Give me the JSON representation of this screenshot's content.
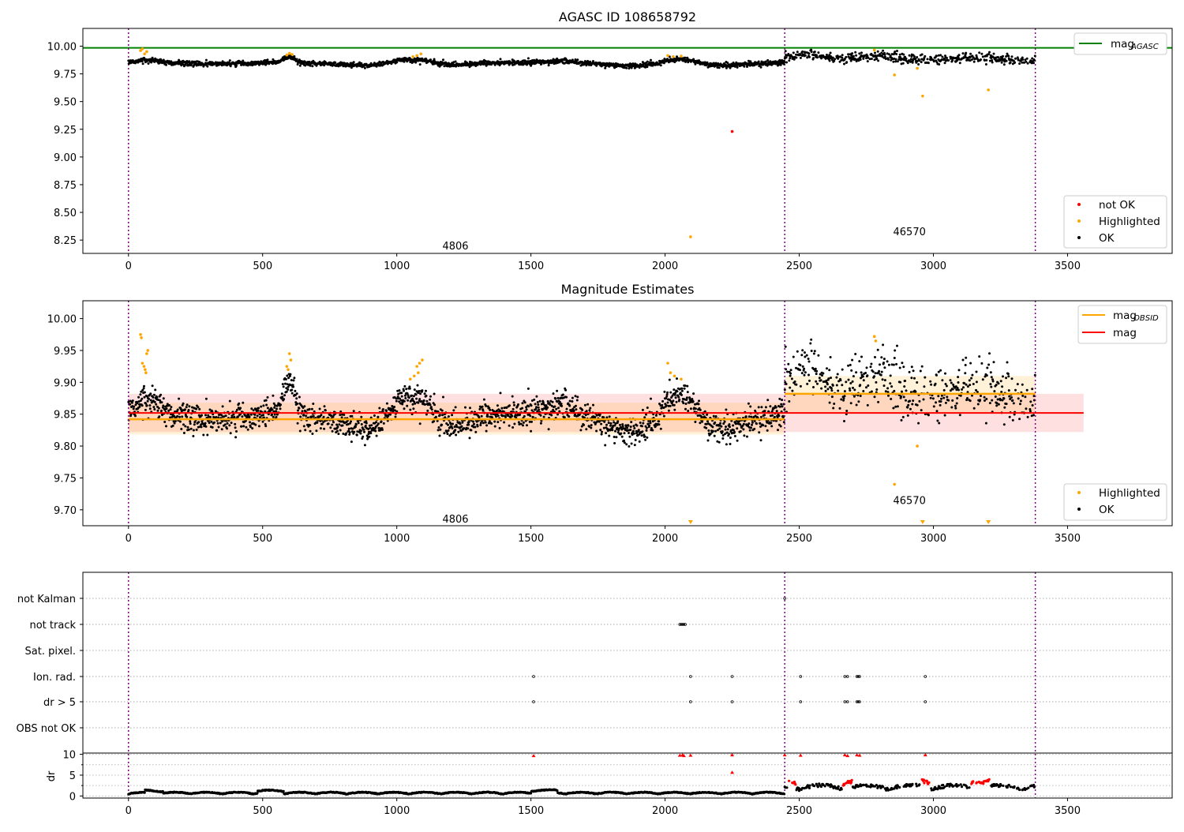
{
  "chart_data": [
    {
      "type": "scatter",
      "title": "AGASC ID 108658792",
      "xlim": [
        -170,
        3890
      ],
      "ylim": [
        8.13,
        10.16
      ],
      "xticks": [
        0,
        500,
        1000,
        1500,
        2000,
        2500,
        3000,
        3500
      ],
      "yticks": [
        8.25,
        8.5,
        8.75,
        9.0,
        9.25,
        9.5,
        9.75,
        10.0
      ],
      "ytick_labels": [
        "8.25",
        "8.50",
        "8.75",
        "9.00",
        "9.25",
        "9.50",
        "9.75",
        "10.00"
      ],
      "vlines": [
        0,
        2446,
        3380
      ],
      "hline": {
        "name": "mag_AGASC",
        "y": 9.985,
        "color": "#008000"
      },
      "annotations": [
        {
          "text": "4806",
          "x": 1170,
          "y": 8.2
        },
        {
          "text": "46570",
          "x": 2850,
          "y": 8.33
        }
      ],
      "segments": [
        {
          "x0": 0,
          "x1": 2446,
          "mean": 9.842
        },
        {
          "x0": 2446,
          "x1": 3380,
          "mean": 9.882
        }
      ],
      "highlighted_points": [
        {
          "x": 45,
          "y": 9.96
        },
        {
          "x": 52,
          "y": 9.975
        },
        {
          "x": 60,
          "y": 9.93
        },
        {
          "x": 68,
          "y": 9.95
        },
        {
          "x": 590,
          "y": 9.92
        },
        {
          "x": 600,
          "y": 9.935
        },
        {
          "x": 610,
          "y": 9.925
        },
        {
          "x": 1060,
          "y": 9.905
        },
        {
          "x": 1075,
          "y": 9.915
        },
        {
          "x": 1090,
          "y": 9.93
        },
        {
          "x": 2010,
          "y": 9.915
        },
        {
          "x": 2030,
          "y": 9.905
        },
        {
          "x": 2060,
          "y": 9.91
        },
        {
          "x": 2095,
          "y": 8.28
        },
        {
          "x": 2780,
          "y": 9.965
        },
        {
          "x": 2855,
          "y": 9.74
        },
        {
          "x": 2940,
          "y": 9.8
        },
        {
          "x": 2960,
          "y": 9.55
        },
        {
          "x": 3205,
          "y": 9.605
        }
      ],
      "not_ok_points": [
        {
          "x": 2250,
          "y": 9.23
        }
      ],
      "legends": [
        {
          "items": [
            {
              "label": "mag",
              "sub": "AGASC",
              "color": "#008000",
              "kind": "line"
            }
          ],
          "placement": "upper-right"
        },
        {
          "items": [
            {
              "label": "not OK",
              "color": "#ff0000",
              "kind": "dot"
            },
            {
              "label": "Highlighted",
              "color": "#ffa500",
              "kind": "dot"
            },
            {
              "label": "OK",
              "color": "#000000",
              "kind": "dot"
            }
          ],
          "placement": "lower-right"
        }
      ]
    },
    {
      "type": "scatter",
      "title": "Magnitude Estimates",
      "xlim": [
        -170,
        3890
      ],
      "ylim": [
        9.675,
        10.028
      ],
      "xticks": [
        0,
        500,
        1000,
        1500,
        2000,
        2500,
        3000,
        3500
      ],
      "yticks": [
        9.7,
        9.75,
        9.8,
        9.85,
        9.9,
        9.95,
        10.0
      ],
      "ytick_labels": [
        "9.70",
        "9.75",
        "9.80",
        "9.85",
        "9.90",
        "9.95",
        "10.00"
      ],
      "vlines": [
        0,
        2446,
        3380
      ],
      "mag_line": {
        "name": "mag",
        "y": 9.852,
        "band": [
          9.822,
          9.882
        ],
        "x0": 0,
        "x1": 3560,
        "color": "#ff0000"
      },
      "obsid_segments": [
        {
          "x0": 0,
          "x1": 2446,
          "y": 9.842,
          "band": [
            9.818,
            9.868
          ],
          "color": "#ffa500"
        },
        {
          "x0": 2446,
          "x1": 3380,
          "y": 9.882,
          "band": [
            9.853,
            9.91
          ],
          "color": "#ffa500"
        }
      ],
      "annotations": [
        {
          "text": "4806",
          "x": 1170,
          "y": 9.686
        },
        {
          "text": "46570",
          "x": 2850,
          "y": 9.715
        }
      ],
      "highlighted_points": [
        {
          "x": 45,
          "y": 9.975
        },
        {
          "x": 48,
          "y": 9.97
        },
        {
          "x": 52,
          "y": 9.93
        },
        {
          "x": 58,
          "y": 9.925
        },
        {
          "x": 62,
          "y": 9.92
        },
        {
          "x": 68,
          "y": 9.945
        },
        {
          "x": 72,
          "y": 9.95
        },
        {
          "x": 65,
          "y": 9.915
        },
        {
          "x": 590,
          "y": 9.925
        },
        {
          "x": 595,
          "y": 9.92
        },
        {
          "x": 600,
          "y": 9.945
        },
        {
          "x": 605,
          "y": 9.935
        },
        {
          "x": 1050,
          "y": 9.905
        },
        {
          "x": 1065,
          "y": 9.91
        },
        {
          "x": 1075,
          "y": 9.925
        },
        {
          "x": 1085,
          "y": 9.93
        },
        {
          "x": 1095,
          "y": 9.935
        },
        {
          "x": 1080,
          "y": 9.915
        },
        {
          "x": 2010,
          "y": 9.93
        },
        {
          "x": 2020,
          "y": 9.915
        },
        {
          "x": 2035,
          "y": 9.91
        },
        {
          "x": 2060,
          "y": 9.905
        },
        {
          "x": 2780,
          "y": 9.972
        },
        {
          "x": 2785,
          "y": 9.965
        },
        {
          "x": 2855,
          "y": 9.74
        },
        {
          "x": 2940,
          "y": 9.8
        }
      ],
      "offscale_markers": [
        {
          "x": 2095
        },
        {
          "x": 2960
        },
        {
          "x": 3205
        }
      ],
      "legends": [
        {
          "items": [
            {
              "label": "mag",
              "sub": "OBSID",
              "color": "#ffa500",
              "kind": "line"
            },
            {
              "label": "mag",
              "sub": "",
              "color": "#ff0000",
              "kind": "line"
            }
          ],
          "placement": "upper-right"
        },
        {
          "items": [
            {
              "label": "Highlighted",
              "color": "#ffa500",
              "kind": "dot"
            },
            {
              "label": "OK",
              "color": "#000000",
              "kind": "dot"
            }
          ],
          "placement": "lower-right"
        }
      ]
    },
    {
      "type": "scatter",
      "title": "",
      "xlim": [
        -170,
        3890
      ],
      "xticks": [
        0,
        500,
        1000,
        1500,
        2000,
        2500,
        3000,
        3500
      ],
      "vlines": [
        0,
        2446,
        3380
      ],
      "flag_rows": [
        "not Kalman",
        "not track",
        "Sat. pixel.",
        "Ion. rad.",
        "dr > 5",
        "OBS not OK"
      ],
      "flag_points": {
        "not Kalman": [
          2446
        ],
        "not track": [
          2055,
          2060,
          2065,
          2070,
          2075
        ],
        "Sat. pixel.": [],
        "Ion. rad.": [
          1510,
          2095,
          2250,
          2505,
          2670,
          2680,
          2715,
          2720,
          2725,
          2970
        ],
        "dr > 5": [
          1510,
          2095,
          2250,
          2505,
          2670,
          2680,
          2715,
          2720,
          2725,
          2970
        ],
        "OBS not OK": []
      },
      "dr_ylabel": "dr",
      "dr_ylim": [
        -0.5,
        10.3
      ],
      "dr_yticks": [
        0,
        5,
        10
      ],
      "dr_ytick_labels": [
        "0",
        "5",
        "10"
      ],
      "dr_highlight_points": [
        {
          "x": 1510,
          "y": 9.7
        },
        {
          "x": 2055,
          "y": 9.8
        },
        {
          "x": 2065,
          "y": 9.9
        },
        {
          "x": 2070,
          "y": 9.7
        },
        {
          "x": 2095,
          "y": 9.8
        },
        {
          "x": 2250,
          "y": 9.9
        },
        {
          "x": 2250,
          "y": 5.7
        },
        {
          "x": 2446,
          "y": 9.9
        },
        {
          "x": 2505,
          "y": 9.8
        },
        {
          "x": 2670,
          "y": 9.9
        },
        {
          "x": 2680,
          "y": 9.7
        },
        {
          "x": 2715,
          "y": 9.9
        },
        {
          "x": 2725,
          "y": 9.8
        },
        {
          "x": 2970,
          "y": 9.9
        }
      ]
    }
  ]
}
